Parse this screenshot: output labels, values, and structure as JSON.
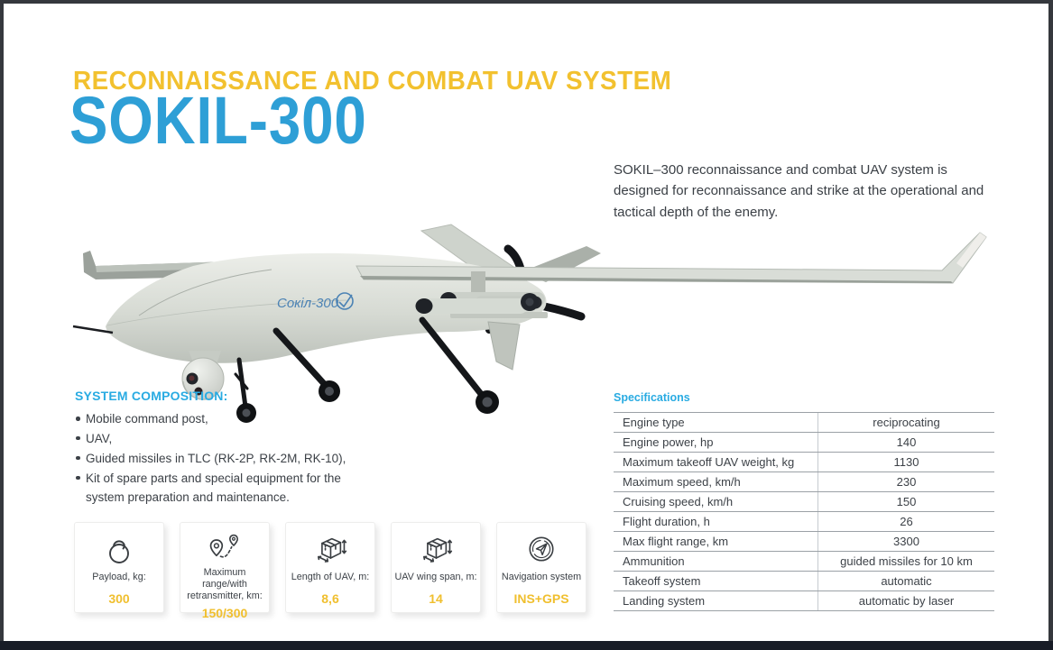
{
  "page": {
    "kicker": "RECONNAISSANCE AND COMBAT UAV SYSTEM",
    "title": "SOKIL-300",
    "description": "SOKIL–300 reconnaissance and combat UAV system is designed for reconnaissance and strike at the operational and tactical depth of the enemy."
  },
  "colors": {
    "accent_yellow": "#F2C12F",
    "title_blue": "#2E9FD6",
    "heading_cyan": "#29ABE2",
    "body_text": "#3C4147"
  },
  "plane": {
    "marking": "Сокіл-300"
  },
  "composition": {
    "heading": "SYSTEM COMPOSITION:",
    "items": [
      "Mobile command post,",
      "UAV,",
      "Guided missiles in TLC (RK-2P, RK-2M, RK-10),",
      "Kit of spare parts and special equipment for the system preparation and maintenance."
    ]
  },
  "specifications": {
    "heading": "Specifications",
    "rows": [
      {
        "label": "Engine type",
        "value": "reciprocating"
      },
      {
        "label": "Engine power, hp",
        "value": "140"
      },
      {
        "label": "Maximum takeoff UAV weight, kg",
        "value": "1130"
      },
      {
        "label": "Maximum speed, km/h",
        "value": "230"
      },
      {
        "label": "Cruising speed, km/h",
        "value": "150"
      },
      {
        "label": "Flight duration, h",
        "value": "26"
      },
      {
        "label": "Max flight range, km",
        "value": "3300"
      },
      {
        "label": "Ammunition",
        "value": "guided missiles for 10 km"
      },
      {
        "label": "Takeoff system",
        "value": "automatic"
      },
      {
        "label": "Landing system",
        "value": "automatic by laser"
      }
    ]
  },
  "cards": [
    {
      "icon": "kettlebell-icon",
      "label": "Payload, kg:",
      "value": "300"
    },
    {
      "icon": "route-pins-icon",
      "label": "Maximum range/with retransmitter, km:",
      "value": "150/300"
    },
    {
      "icon": "box-dimensions-icon",
      "label": "Length of UAV, m:",
      "value": "8,6"
    },
    {
      "icon": "box-dimensions-icon",
      "label": "UAV wing span, m:",
      "value": "14"
    },
    {
      "icon": "navigation-icon",
      "label": "Navigation system",
      "value": "INS+GPS"
    }
  ]
}
